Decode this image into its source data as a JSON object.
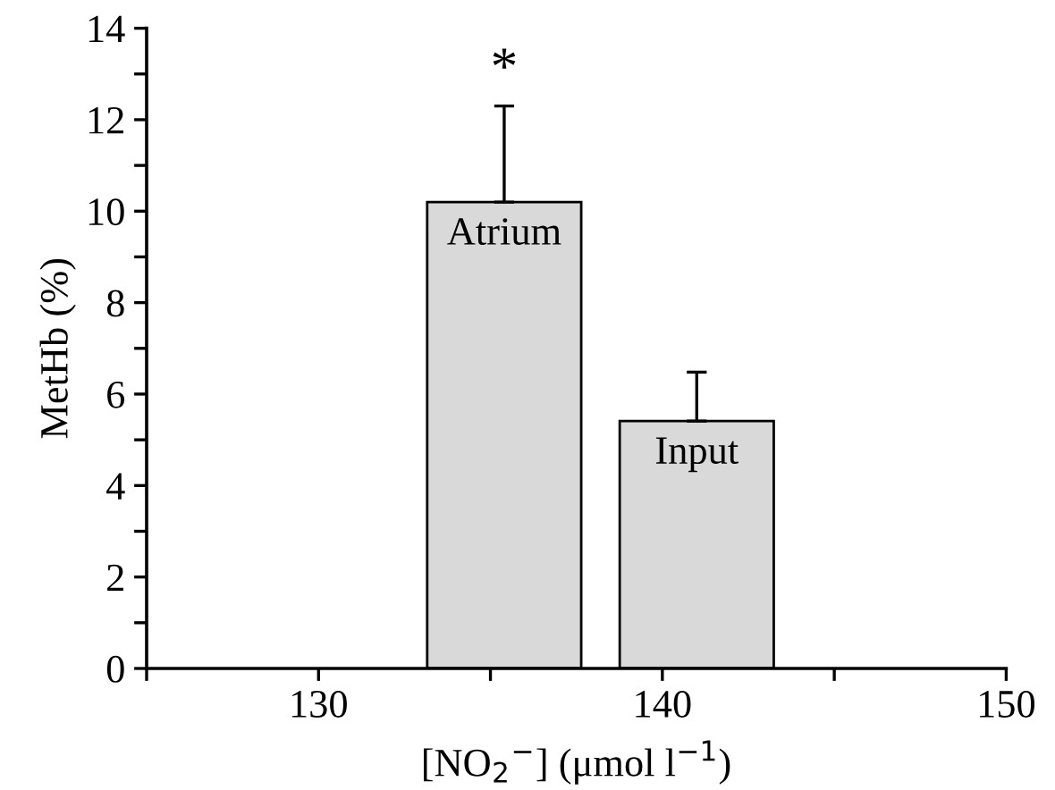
{
  "chart_data": {
    "type": "bar",
    "xlabel": "[NO$_{2}$$^{−}$] (μmol l$^{−1}$)",
    "ylabel": "MetHb (%)",
    "x": [
      135.4,
      141.0
    ],
    "values": [
      10.2,
      5.41
    ],
    "color": "#d9d9d9",
    "errors": [
      [
        10.2,
        12.3
      ],
      [
        5.41,
        6.48
      ]
    ],
    "xlim": [
      125,
      150
    ],
    "xticks": [
      {
        "value": 125,
        "label": null
      },
      130,
      {
        "value": 135,
        "label": null
      },
      140,
      {
        "value": 145,
        "label": null
      },
      150
    ],
    "ylim": [
      0,
      14
    ],
    "yticks": [
      0,
      {
        "value": 1,
        "label": null
      },
      2,
      {
        "value": 3,
        "label": null
      },
      4,
      {
        "value": 5,
        "label": null
      },
      6,
      {
        "value": 7,
        "label": null
      },
      8,
      {
        "value": 9,
        "label": null
      },
      10,
      {
        "value": 11,
        "label": null
      },
      12,
      {
        "value": 13,
        "label": null
      },
      14
    ],
    "grid": false,
    "legend": false,
    "annotations": [
      "Atrium",
      "Input",
      "*"
    ]
  }
}
